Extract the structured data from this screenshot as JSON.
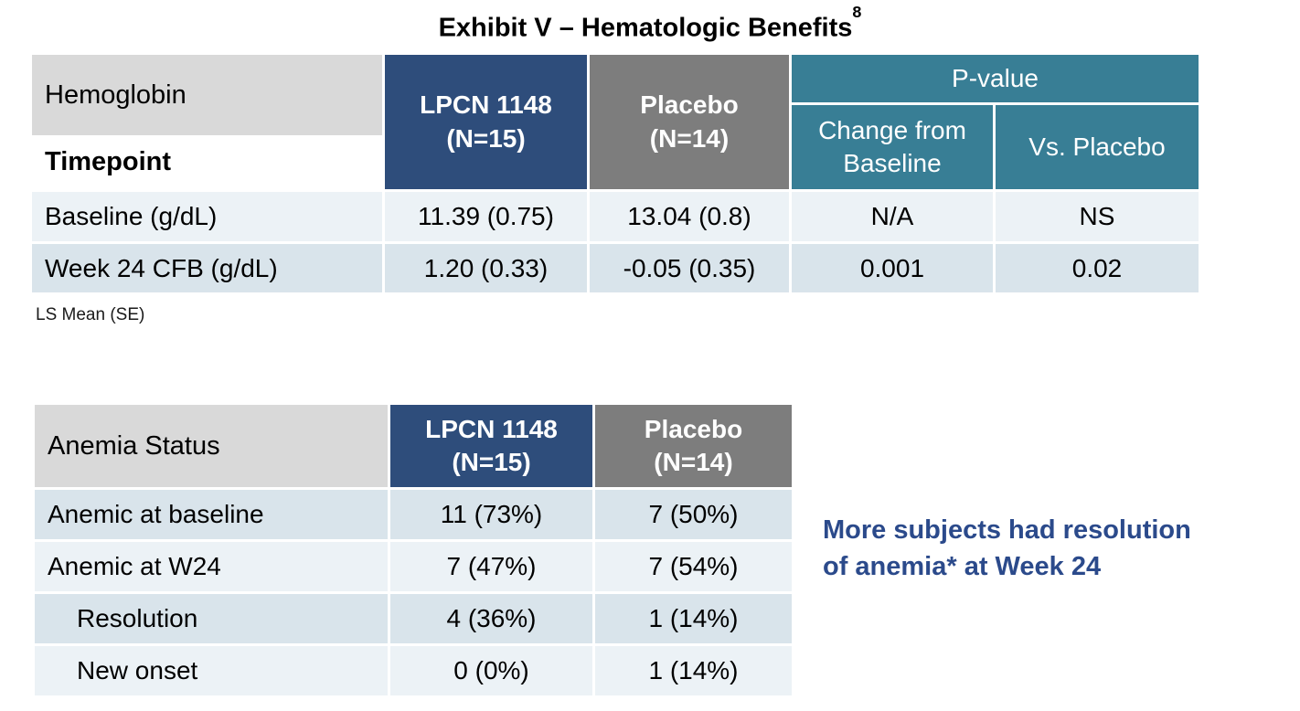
{
  "title": {
    "text": "Exhibit V – Hematologic Benefits",
    "superscript": "8"
  },
  "colors": {
    "navy": "#2E4D7B",
    "placebo_gray": "#7D7D7D",
    "teal": "#387E95",
    "header_light_gray": "#D9D9D9",
    "row_light": "#ECF2F6",
    "row_dark": "#D9E4EB",
    "callout_blue": "#2B4A8B"
  },
  "hemoglobin_table": {
    "corner_title": "Hemoglobin",
    "corner_subtitle": "Timepoint",
    "columns": {
      "lpcn": "LPCN 1148\n(N=15)",
      "placebo": "Placebo\n(N=14)",
      "pvalue_group": "P-value",
      "p_change": "Change from\nBaseline",
      "p_vs": "Vs. Placebo"
    },
    "rows": [
      {
        "label": "Baseline (g/dL)",
        "lpcn": "11.39 (0.75)",
        "placebo": "13.04 (0.8)",
        "p_change": "N/A",
        "p_vs": "NS"
      },
      {
        "label": "Week 24 CFB (g/dL)",
        "lpcn": "1.20 (0.33)",
        "placebo": "-0.05 (0.35)",
        "p_change": "0.001",
        "p_vs": "0.02"
      }
    ],
    "footnote": "LS Mean (SE)"
  },
  "anemia_table": {
    "corner_title": "Anemia Status",
    "columns": {
      "lpcn": "LPCN 1148\n(N=15)",
      "placebo": "Placebo\n(N=14)"
    },
    "rows": [
      {
        "label": "Anemic at baseline",
        "lpcn": "11 (73%)",
        "placebo": "7 (50%)"
      },
      {
        "label": "Anemic at W24",
        "lpcn": "7 (47%)",
        "placebo": "7 (54%)"
      },
      {
        "label": "Resolution",
        "lpcn": "4 (36%)",
        "placebo": "1 (14%)"
      },
      {
        "label": "New onset",
        "lpcn": "0 (0%)",
        "placebo": "1 (14%)"
      }
    ]
  },
  "callout": {
    "text": "More subjects had resolution\nof anemia* at Week 24"
  }
}
